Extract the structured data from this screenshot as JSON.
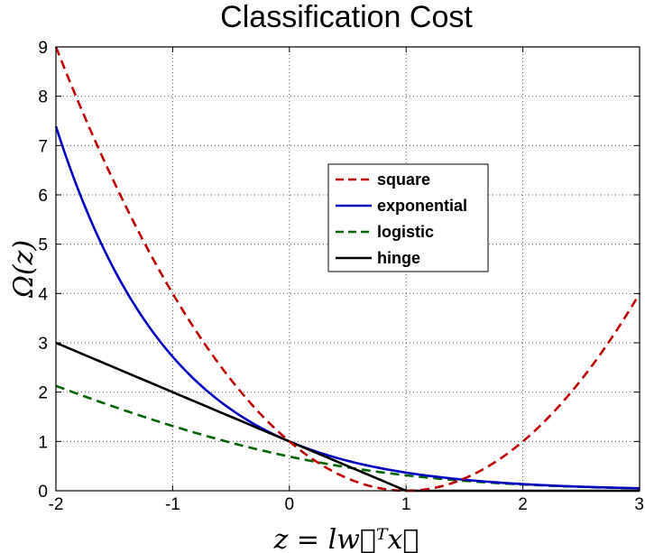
{
  "chart_data": {
    "type": "line",
    "title": "Classification Cost",
    "xlabel": "z = lw⃗ᵀx⃗",
    "ylabel": "Ω(z)",
    "xlim": [
      -2,
      3
    ],
    "ylim": [
      0,
      9
    ],
    "grid": true,
    "legend_position": "center-right",
    "xticks": [
      -2,
      -1,
      0,
      1,
      2,
      3
    ],
    "yticks": [
      0,
      1,
      2,
      3,
      4,
      5,
      6,
      7,
      8,
      9
    ],
    "series": [
      {
        "name": "square",
        "color": "#c00000",
        "style": "dashed",
        "x": [
          -2,
          -1.5,
          -1,
          -0.5,
          0,
          0.25,
          0.5,
          0.75,
          1,
          1.25,
          1.5,
          1.75,
          2,
          2.25,
          2.5,
          2.75,
          3
        ],
        "y": [
          9,
          6.25,
          4,
          2.25,
          1,
          0.5625,
          0.25,
          0.0625,
          0,
          0.0625,
          0.25,
          0.5625,
          1,
          1.5625,
          2.25,
          3.0625,
          4
        ]
      },
      {
        "name": "exponential",
        "color": "#0000c0",
        "style": "solid",
        "x": [
          -2,
          -1.75,
          -1.5,
          -1.25,
          -1,
          -0.75,
          -0.5,
          -0.25,
          0,
          0.25,
          0.5,
          0.75,
          1,
          1.5,
          2,
          2.5,
          3
        ],
        "y": [
          7.39,
          5.75,
          4.48,
          3.49,
          2.72,
          2.12,
          1.65,
          1.28,
          1,
          0.78,
          0.61,
          0.47,
          0.37,
          0.22,
          0.14,
          0.08,
          0.05
        ]
      },
      {
        "name": "logistic",
        "color": "#006400",
        "style": "dashed",
        "x": [
          -2,
          -1.5,
          -1,
          -0.5,
          0,
          0.5,
          1,
          1.5,
          2,
          2.5,
          3
        ],
        "y": [
          2.13,
          1.68,
          1.27,
          0.94,
          0.69,
          0.47,
          0.31,
          0.2,
          0.13,
          0.08,
          0.05
        ]
      },
      {
        "name": "hinge",
        "color": "#000000",
        "style": "solid",
        "x": [
          -2,
          1,
          3
        ],
        "y": [
          3,
          0,
          0
        ]
      }
    ]
  }
}
